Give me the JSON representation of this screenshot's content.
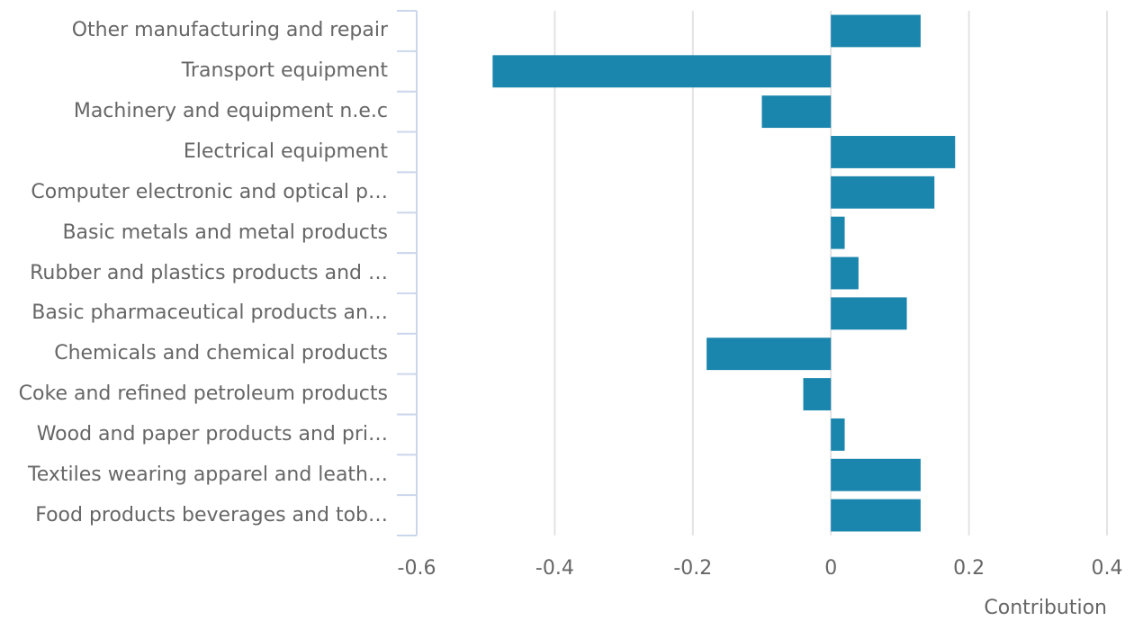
{
  "chart_data": {
    "type": "barh",
    "categories": [
      "Other manufacturing and repair",
      "Transport equipment",
      "Machinery and equipment n.e.c",
      "Electrical equipment",
      "Computer electronic and optical p…",
      "Basic metals and metal products",
      "Rubber and plastics products and …",
      "Basic pharmaceutical products an…",
      "Chemicals and chemical products",
      "Coke and refined petroleum products",
      "Wood and paper products and pri…",
      "Textiles wearing apparel and leath…",
      "Food products beverages and tob…"
    ],
    "values": [
      0.13,
      -0.49,
      -0.1,
      0.18,
      0.15,
      0.02,
      0.04,
      0.11,
      -0.18,
      -0.04,
      0.02,
      0.13,
      0.13
    ],
    "color": "#1a85ad",
    "xlabel": "Contribution",
    "xlim": [
      -0.6,
      0.4
    ],
    "xticks": [
      -0.6,
      -0.4,
      -0.2,
      0,
      0.2,
      0.4
    ],
    "grid": true
  }
}
